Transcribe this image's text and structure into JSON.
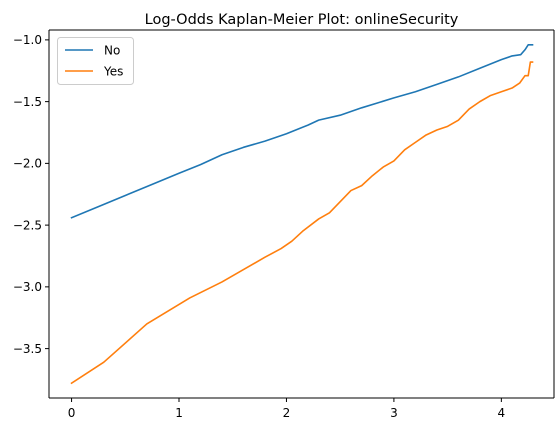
{
  "chart_data": {
    "type": "line",
    "title": "Log-Odds Kaplan-Meier Plot: onlineSecurity",
    "xlabel": "",
    "ylabel": "",
    "xlim": [
      -0.21,
      4.49
    ],
    "ylim": [
      -3.9,
      -0.92
    ],
    "x_ticks": [
      0,
      1,
      2,
      3,
      4
    ],
    "x_tick_labels": [
      "0",
      "1",
      "2",
      "3",
      "4"
    ],
    "y_ticks": [
      -3.5,
      -3.0,
      -2.5,
      -2.0,
      -1.5,
      -1.0
    ],
    "y_tick_labels": [
      "−3.5",
      "−3.0",
      "−2.5",
      "−2.0",
      "−1.5",
      "−1.0"
    ],
    "grid": false,
    "legend_position": "top-left",
    "series": [
      {
        "name": "No",
        "color": "#1f77b4",
        "points": [
          [
            0.0,
            -2.44
          ],
          [
            0.25,
            -2.35
          ],
          [
            0.5,
            -2.26
          ],
          [
            0.75,
            -2.17
          ],
          [
            1.0,
            -2.08
          ],
          [
            1.2,
            -2.01
          ],
          [
            1.4,
            -1.93
          ],
          [
            1.6,
            -1.87
          ],
          [
            1.8,
            -1.82
          ],
          [
            2.0,
            -1.76
          ],
          [
            2.2,
            -1.69
          ],
          [
            2.3,
            -1.65
          ],
          [
            2.5,
            -1.61
          ],
          [
            2.7,
            -1.55
          ],
          [
            2.85,
            -1.51
          ],
          [
            3.0,
            -1.47
          ],
          [
            3.2,
            -1.42
          ],
          [
            3.4,
            -1.36
          ],
          [
            3.6,
            -1.3
          ],
          [
            3.8,
            -1.23
          ],
          [
            4.0,
            -1.16
          ],
          [
            4.1,
            -1.13
          ],
          [
            4.18,
            -1.12
          ],
          [
            4.22,
            -1.08
          ],
          [
            4.25,
            -1.04
          ],
          [
            4.29,
            -1.04
          ]
        ]
      },
      {
        "name": "Yes",
        "color": "#ff7f0e",
        "points": [
          [
            0.0,
            -3.78
          ],
          [
            0.3,
            -3.61
          ],
          [
            0.7,
            -3.3
          ],
          [
            1.1,
            -3.09
          ],
          [
            1.4,
            -2.96
          ],
          [
            1.6,
            -2.86
          ],
          [
            1.8,
            -2.76
          ],
          [
            1.95,
            -2.69
          ],
          [
            2.05,
            -2.63
          ],
          [
            2.15,
            -2.55
          ],
          [
            2.3,
            -2.45
          ],
          [
            2.4,
            -2.4
          ],
          [
            2.5,
            -2.31
          ],
          [
            2.6,
            -2.22
          ],
          [
            2.7,
            -2.18
          ],
          [
            2.8,
            -2.1
          ],
          [
            2.9,
            -2.03
          ],
          [
            3.0,
            -1.98
          ],
          [
            3.1,
            -1.89
          ],
          [
            3.2,
            -1.83
          ],
          [
            3.3,
            -1.77
          ],
          [
            3.4,
            -1.73
          ],
          [
            3.5,
            -1.7
          ],
          [
            3.6,
            -1.65
          ],
          [
            3.7,
            -1.56
          ],
          [
            3.8,
            -1.5
          ],
          [
            3.9,
            -1.45
          ],
          [
            4.0,
            -1.42
          ],
          [
            4.1,
            -1.39
          ],
          [
            4.17,
            -1.35
          ],
          [
            4.22,
            -1.29
          ],
          [
            4.25,
            -1.29
          ],
          [
            4.27,
            -1.18
          ],
          [
            4.29,
            -1.18
          ]
        ]
      }
    ]
  }
}
